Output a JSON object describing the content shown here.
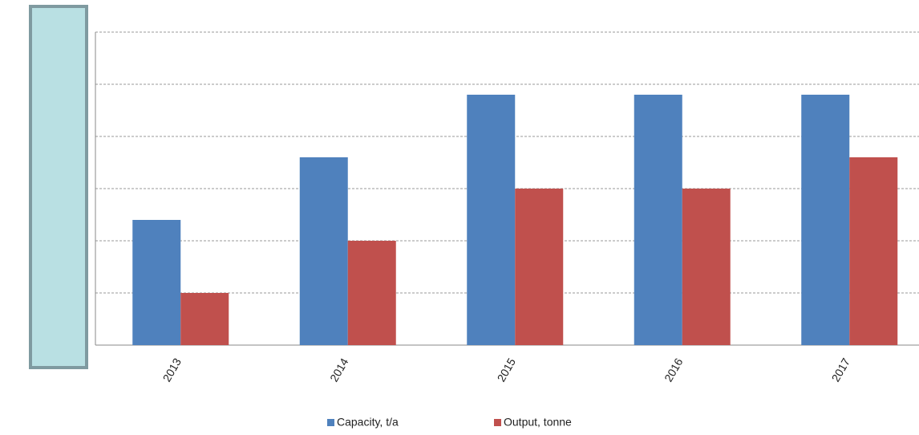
{
  "chart_data": {
    "type": "bar",
    "categories": [
      "2013",
      "2014",
      "2015",
      "2016",
      "2017"
    ],
    "series": [
      {
        "name": "Capacity, t/a",
        "color": "#4f81bd",
        "values": [
          2.4,
          3.6,
          4.8,
          4.8,
          4.8
        ]
      },
      {
        "name": "Output, tonne",
        "color": "#c0504d",
        "values": [
          1.0,
          2.0,
          3.0,
          3.0,
          3.6
        ]
      }
    ],
    "ylim": [
      0,
      6
    ],
    "yticks": [
      0,
      1,
      2,
      3,
      4,
      5,
      6
    ],
    "grid": true,
    "legend": "bottom"
  }
}
